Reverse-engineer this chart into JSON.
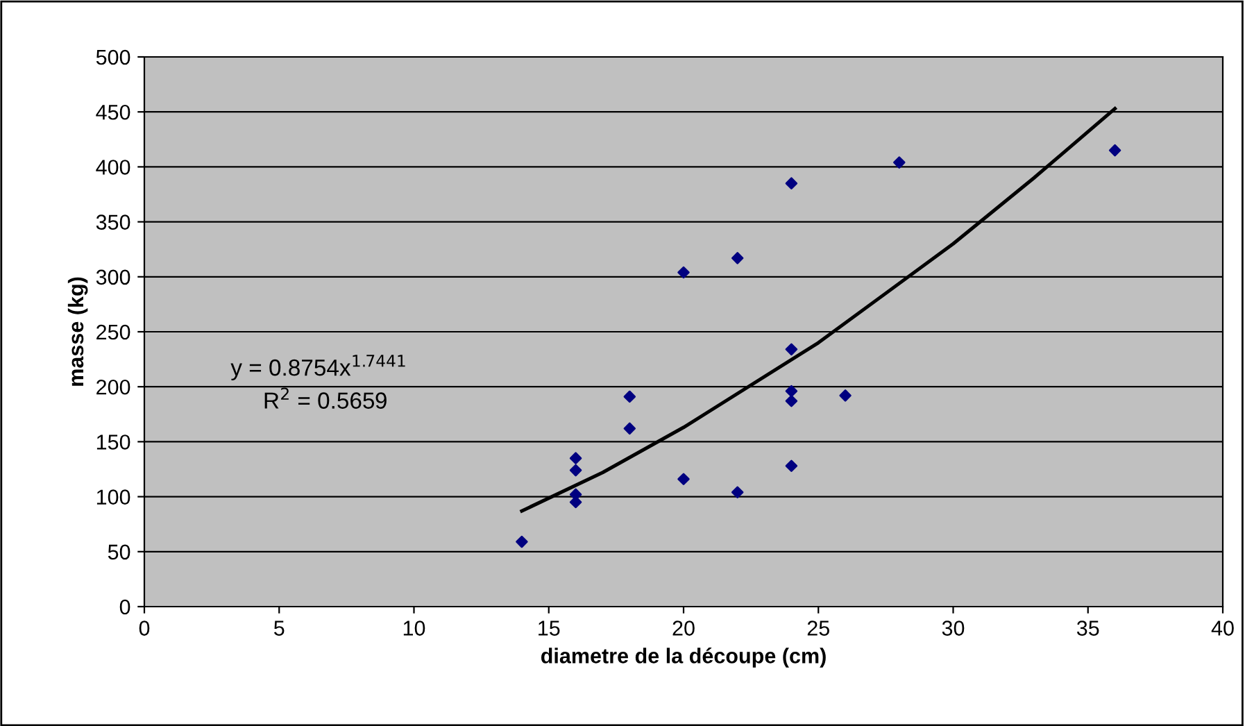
{
  "chart_data": {
    "type": "scatter",
    "xlabel": "diametre de la découpe (cm)",
    "ylabel": "masse (kg)",
    "xlim": [
      0,
      40
    ],
    "xticks": [
      0,
      5,
      10,
      15,
      20,
      25,
      30,
      35,
      40
    ],
    "ylim": [
      0,
      500
    ],
    "yticks": [
      0,
      50,
      100,
      150,
      200,
      250,
      300,
      350,
      400,
      450,
      500
    ],
    "grid": "y",
    "marker": "diamond",
    "series": [
      {
        "color": "#000080",
        "x": [
          14,
          16,
          16,
          16,
          16,
          18,
          18,
          20,
          20,
          22,
          22,
          24,
          24,
          24,
          24,
          24,
          26,
          28,
          36
        ],
        "values": [
          59,
          135,
          124,
          102,
          95,
          191,
          162,
          304,
          116,
          317,
          104,
          385,
          234,
          196,
          187,
          128,
          192,
          404,
          415
        ]
      },
      {
        "type": "line",
        "marker": "none",
        "color": "#000000",
        "x": [
          14,
          17,
          20,
          25,
          30,
          33,
          36
        ],
        "values": [
          87,
          122,
          163,
          240,
          330,
          390,
          453
        ]
      }
    ],
    "annotations": [
      "y = 0.8754x$^{1.7441}$",
      "R$^{2}$ = 0.5659"
    ]
  }
}
